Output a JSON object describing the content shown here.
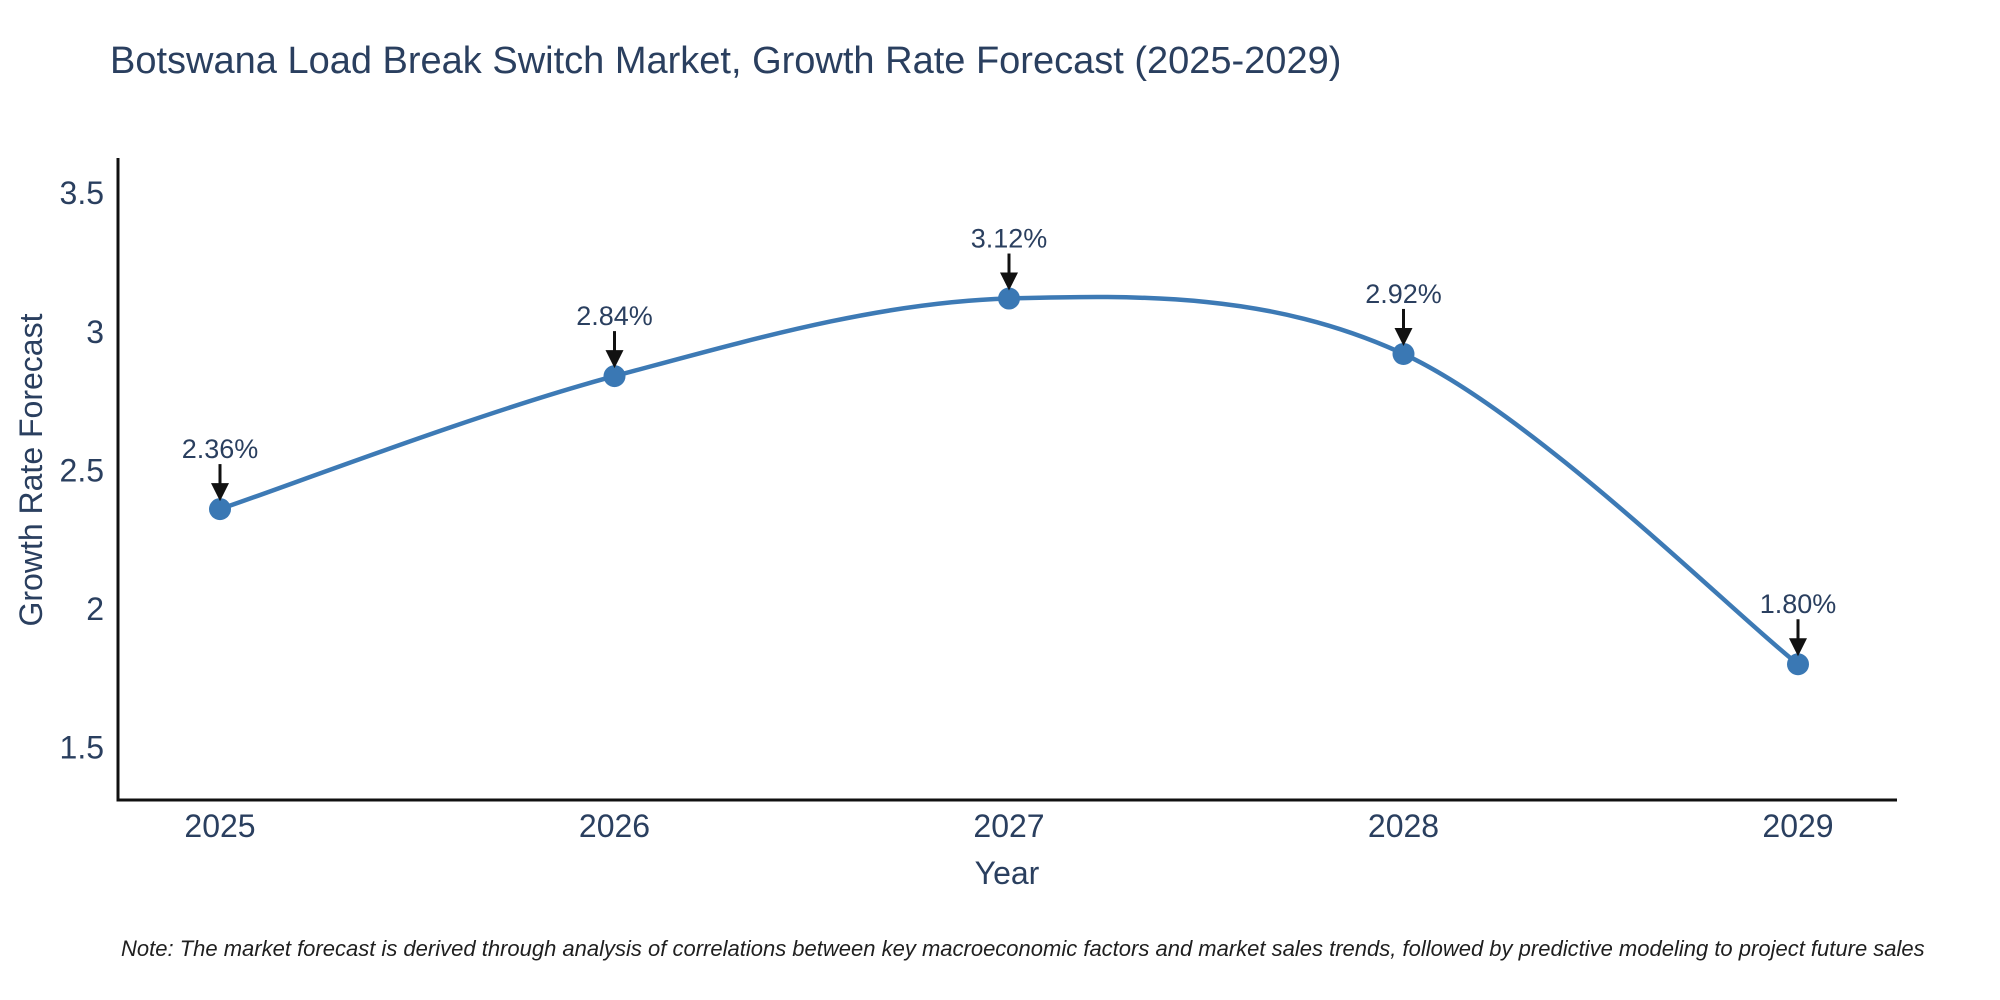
{
  "title": "Botswana Load Break Switch Market, Growth Rate Forecast (2025-2029)",
  "note": "Note: The market forecast is derived through analysis of correlations between key macroeconomic factors and market sales trends, followed by predictive modeling to project future sales",
  "colors": {
    "line": "#3d7ab5",
    "marker": "#3a78b4",
    "text": "#2a3f5f",
    "axis": "#101010",
    "arrow": "#111111",
    "background": "#ffffff"
  },
  "chart_data": {
    "type": "line",
    "title": "Botswana Load Break Switch Market, Growth Rate Forecast (2025-2029)",
    "x": [
      "2025",
      "2026",
      "2027",
      "2028",
      "2029"
    ],
    "y": [
      2.36,
      2.84,
      3.12,
      2.92,
      1.8
    ],
    "point_labels": [
      "2.36%",
      "2.84%",
      "3.12%",
      "2.92%",
      "1.80%"
    ],
    "xlabel": "Year",
    "ylabel": "Growth Rate Forecast",
    "yticks": [
      3.5,
      3,
      2.5,
      2,
      1.5
    ],
    "ytick_labels": [
      "3.5",
      "3",
      "2.5",
      "2",
      "1.5"
    ],
    "ylim": [
      1.31,
      3.62
    ],
    "grid": false,
    "legend": false,
    "line_style": "spline",
    "markers": true,
    "annotations": "value-label-with-down-arrow-above-each-point"
  }
}
